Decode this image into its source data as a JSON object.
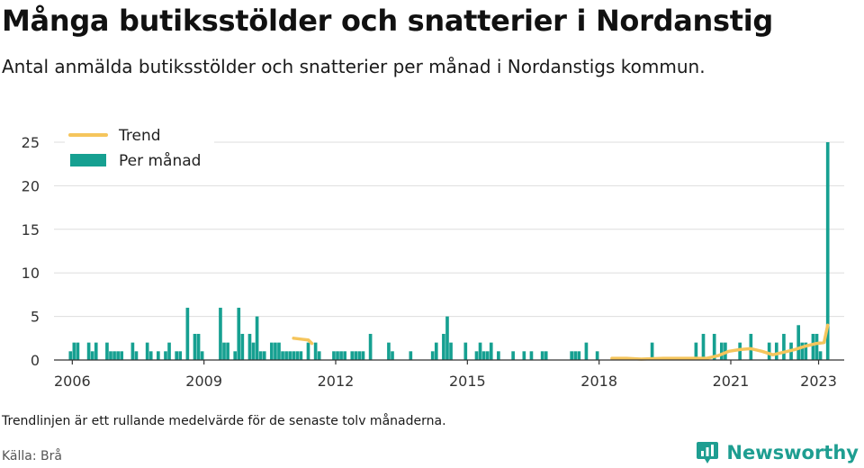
{
  "header": {
    "title": "Många butiksstölder och snatterier i Nordanstig",
    "subtitle": "Antal anmälda butiksstölder och snatterier per månad i Nordanstigs kommun."
  },
  "footer": {
    "note": "Trendlinjen är ett rullande medelvärde för de senaste tolv månaderna.",
    "source": "Källa: Brå",
    "brand": "Newsworthy",
    "brand_icon": "newsworthy-logo-icon"
  },
  "colors": {
    "bar": "#16a091",
    "trend": "#f5c55c",
    "grid": "#dddddd",
    "axis": "#333333",
    "brand": "#1e9e91"
  },
  "chart_data": {
    "type": "bar",
    "title": "Många butiksstölder och snatterier i Nordanstig",
    "xlabel": "",
    "ylabel": "",
    "ylim": [
      0,
      25
    ],
    "yticks": [
      0,
      5,
      10,
      15,
      20,
      25
    ],
    "xticks": [
      "2006",
      "2009",
      "2012",
      "2015",
      "2018",
      "2021",
      "2023"
    ],
    "grid": true,
    "legend_position": "top-left",
    "legend": [
      "Trend",
      "Per månad"
    ],
    "series": [
      {
        "name": "Per månad",
        "kind": "bar",
        "x": [
          "2005-12",
          "2006-01",
          "2006-02",
          "2006-05",
          "2006-06",
          "2006-07",
          "2006-10",
          "2006-11",
          "2006-12",
          "2007-01",
          "2007-02",
          "2007-05",
          "2007-06",
          "2007-09",
          "2007-10",
          "2007-12",
          "2008-02",
          "2008-03",
          "2008-05",
          "2008-06",
          "2008-08",
          "2008-10",
          "2008-11",
          "2008-12",
          "2009-05",
          "2009-06",
          "2009-07",
          "2009-09",
          "2009-10",
          "2009-11",
          "2010-01",
          "2010-02",
          "2010-03",
          "2010-04",
          "2010-05",
          "2010-07",
          "2010-08",
          "2010-09",
          "2010-10",
          "2010-11",
          "2010-12",
          "2011-01",
          "2011-02",
          "2011-03",
          "2011-05",
          "2011-07",
          "2011-08",
          "2011-12",
          "2012-01",
          "2012-02",
          "2012-03",
          "2012-05",
          "2012-06",
          "2012-07",
          "2012-08",
          "2012-10",
          "2013-03",
          "2013-04",
          "2013-09",
          "2014-03",
          "2014-04",
          "2014-06",
          "2014-07",
          "2014-08",
          "2014-12",
          "2015-03",
          "2015-04",
          "2015-05",
          "2015-06",
          "2015-07",
          "2015-09",
          "2016-01",
          "2016-04",
          "2016-06",
          "2016-09",
          "2016-10",
          "2017-05",
          "2017-06",
          "2017-07",
          "2017-09",
          "2017-12",
          "2019-03",
          "2020-03",
          "2020-05",
          "2020-08",
          "2020-10",
          "2020-11",
          "2021-03",
          "2021-06",
          "2021-11",
          "2022-01",
          "2022-03",
          "2022-05",
          "2022-07",
          "2022-08",
          "2022-09",
          "2022-11",
          "2022-12",
          "2023-01",
          "2023-03"
        ],
        "values": [
          1,
          2,
          2,
          2,
          1,
          2,
          2,
          1,
          1,
          1,
          1,
          2,
          1,
          2,
          1,
          1,
          1,
          2,
          1,
          1,
          6,
          3,
          3,
          1,
          6,
          2,
          2,
          1,
          6,
          3,
          3,
          2,
          5,
          1,
          1,
          2,
          2,
          2,
          1,
          1,
          1,
          1,
          1,
          1,
          2,
          2,
          1,
          1,
          1,
          1,
          1,
          1,
          1,
          1,
          1,
          3,
          2,
          1,
          1,
          1,
          2,
          3,
          5,
          2,
          2,
          1,
          2,
          1,
          1,
          2,
          1,
          1,
          1,
          1,
          1,
          1,
          1,
          1,
          1,
          2,
          1,
          2,
          2,
          3,
          3,
          2,
          2,
          2,
          3,
          2,
          2,
          3,
          2,
          4,
          2,
          2,
          3,
          3,
          1,
          25
        ]
      },
      {
        "name": "Trend",
        "kind": "line",
        "segments": [
          {
            "x": [
              "2011-01",
              "2011-03",
              "2011-05",
              "2011-06"
            ],
            "values": [
              2.5,
              2.4,
              2.3,
              1.9
            ]
          },
          {
            "x": [
              "2018-04",
              "2018-08",
              "2018-12",
              "2019-06",
              "2019-12",
              "2020-06",
              "2020-09",
              "2020-12",
              "2021-03",
              "2021-06",
              "2021-09",
              "2021-12",
              "2022-03",
              "2022-06",
              "2022-09",
              "2022-12",
              "2023-02",
              "2023-03"
            ],
            "values": [
              0.2,
              0.2,
              0.1,
              0.2,
              0.2,
              0.2,
              0.5,
              1.0,
              1.2,
              1.3,
              1.0,
              0.6,
              0.9,
              1.2,
              1.6,
              1.9,
              2.0,
              4.0
            ]
          }
        ]
      }
    ]
  }
}
